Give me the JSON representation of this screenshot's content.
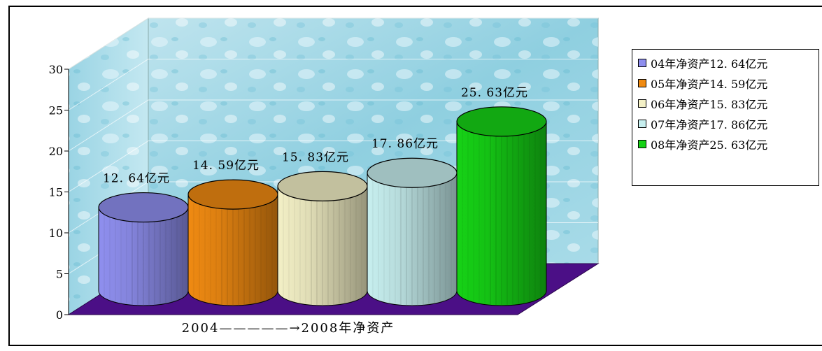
{
  "chart_data": {
    "type": "bar",
    "categories": [
      "04",
      "05",
      "06",
      "07",
      "08"
    ],
    "values": [
      12.64,
      14.59,
      15.83,
      17.86,
      25.63
    ],
    "data_labels": [
      "12. 64亿元",
      "14. 59亿元",
      "15. 83亿元",
      "17. 86亿元",
      "25. 63亿元"
    ],
    "xlabel": "2004—————→2008年净资产",
    "ylabel": "",
    "ylim": [
      0,
      30
    ],
    "yticks": [
      "0",
      "5",
      "10",
      "15",
      "20",
      "25",
      "30"
    ],
    "style": "3d-cylinder",
    "grid": true,
    "legend_position": "right",
    "series": [
      {
        "name": "04年净资产12. 64亿元",
        "color": "#8f8fef"
      },
      {
        "name": "05年净资产14. 59亿元",
        "color": "#ef8a12"
      },
      {
        "name": "06年净资产15. 83亿元",
        "color": "#f3f0c6"
      },
      {
        "name": "07年净资产17. 86亿元",
        "color": "#c7efef"
      },
      {
        "name": "08年净资产25. 63亿元",
        "color": "#16d216"
      }
    ]
  }
}
